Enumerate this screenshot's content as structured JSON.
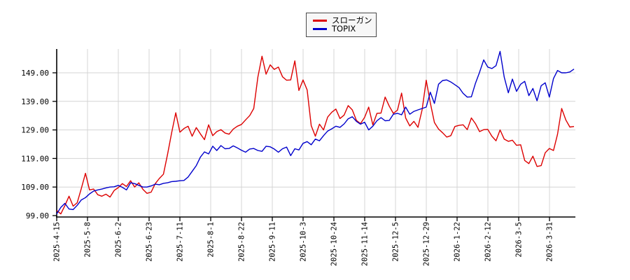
{
  "chart_data": {
    "type": "line",
    "title": "",
    "xlabel": "",
    "ylabel": "",
    "grid": true,
    "legend_position": "top-center",
    "ylim": [
      98.5,
      157.5
    ],
    "y_ticks": [
      99,
      109,
      119,
      129,
      139,
      149
    ],
    "y_tick_labels": [
      "99.00",
      "109.00",
      "119.00",
      "129.00",
      "139.00",
      "149.00"
    ],
    "x_tick_labels": [
      "2025-4-15",
      "2025-5-8",
      "2025-6-2",
      "2025-6-23",
      "2025-7-11",
      "2025-8-1",
      "2025-8-22",
      "2025-9-11",
      "2025-10-3",
      "2025-10-24",
      "2025-11-14",
      "2025-12-5",
      "2025-12-29",
      "2026-1-22",
      "2026-2-12",
      "2026-3-5",
      "2026-3-31"
    ],
    "axis_color": "#000000",
    "grid_color": "#d4d4d4",
    "series": [
      {
        "name": "スローガン",
        "color": "#dd0000",
        "values": [
          100.8,
          99.6,
          102.5,
          105.8,
          102.3,
          103.5,
          108.5,
          113.8,
          108.0,
          108.3,
          106.3,
          105.8,
          106.5,
          105.5,
          107.8,
          108.8,
          110.2,
          109.2,
          111.2,
          109.0,
          110.5,
          108.2,
          106.8,
          107.2,
          110.2,
          112.0,
          113.5,
          120.5,
          128.0,
          135.0,
          128.2,
          129.5,
          130.3,
          126.8,
          129.8,
          127.6,
          125.6,
          130.8,
          127.0,
          128.4,
          129.1,
          127.9,
          127.5,
          129.3,
          130.3,
          130.9,
          132.5,
          134.0,
          136.5,
          147.5,
          154.8,
          148.5,
          151.8,
          150.2,
          151.0,
          147.6,
          146.4,
          146.5,
          153.2,
          142.8,
          146.5,
          143.0,
          130.5,
          126.8,
          131.0,
          129.0,
          133.5,
          135.2,
          136.3,
          133.0,
          134.2,
          137.5,
          136.0,
          132.3,
          131.2,
          133.4,
          137.0,
          130.8,
          134.8,
          134.9,
          140.5,
          137.3,
          134.8,
          135.9,
          141.9,
          133.2,
          130.4,
          132.0,
          129.9,
          136.0,
          146.4,
          138.5,
          131.6,
          129.3,
          128.0,
          126.5,
          127.0,
          130.2,
          130.6,
          130.8,
          129.1,
          133.2,
          131.2,
          128.4,
          129.1,
          129.2,
          126.8,
          125.2,
          129.0,
          125.8,
          125.0,
          125.4,
          123.6,
          123.8,
          118.3,
          117.2,
          119.8,
          116.2,
          116.5,
          121.0,
          122.5,
          121.8,
          127.5,
          136.5,
          132.5,
          130.0,
          130.2
        ]
      },
      {
        "name": "TOPIX",
        "color": "#0000cc",
        "values": [
          99.6,
          101.9,
          103.3,
          101.3,
          101.1,
          102.6,
          104.5,
          105.3,
          106.6,
          107.6,
          108.0,
          108.3,
          108.7,
          109.0,
          109.1,
          109.6,
          108.9,
          108.0,
          110.5,
          110.2,
          109.6,
          109.0,
          109.0,
          109.4,
          110.0,
          109.8,
          110.3,
          110.5,
          110.9,
          111.0,
          111.2,
          111.3,
          112.5,
          114.5,
          116.5,
          119.5,
          121.3,
          120.6,
          123.3,
          121.8,
          123.5,
          122.4,
          122.5,
          123.4,
          122.7,
          121.9,
          121.2,
          122.3,
          122.5,
          121.8,
          121.5,
          123.3,
          123.1,
          122.3,
          121.2,
          122.4,
          123.0,
          120.0,
          122.4,
          122.0,
          124.3,
          124.9,
          123.8,
          125.8,
          125.2,
          127.0,
          128.6,
          129.4,
          130.3,
          129.9,
          131.1,
          132.9,
          133.6,
          132.0,
          131.0,
          131.7,
          129.0,
          130.3,
          132.2,
          133.3,
          132.2,
          132.3,
          134.5,
          134.8,
          134.3,
          137.0,
          134.5,
          135.5,
          136.0,
          136.5,
          137.0,
          142.2,
          138.3,
          145.0,
          146.3,
          146.5,
          145.8,
          144.8,
          143.8,
          141.8,
          140.5,
          140.6,
          145.3,
          149.2,
          153.5,
          151.0,
          150.5,
          151.5,
          156.5,
          147.5,
          142.0,
          146.8,
          142.5,
          145.0,
          146.0,
          141.0,
          143.5,
          139.2,
          144.5,
          145.5,
          140.5,
          147.0,
          149.8,
          149.0,
          149.0,
          149.3,
          150.3
        ]
      }
    ]
  }
}
